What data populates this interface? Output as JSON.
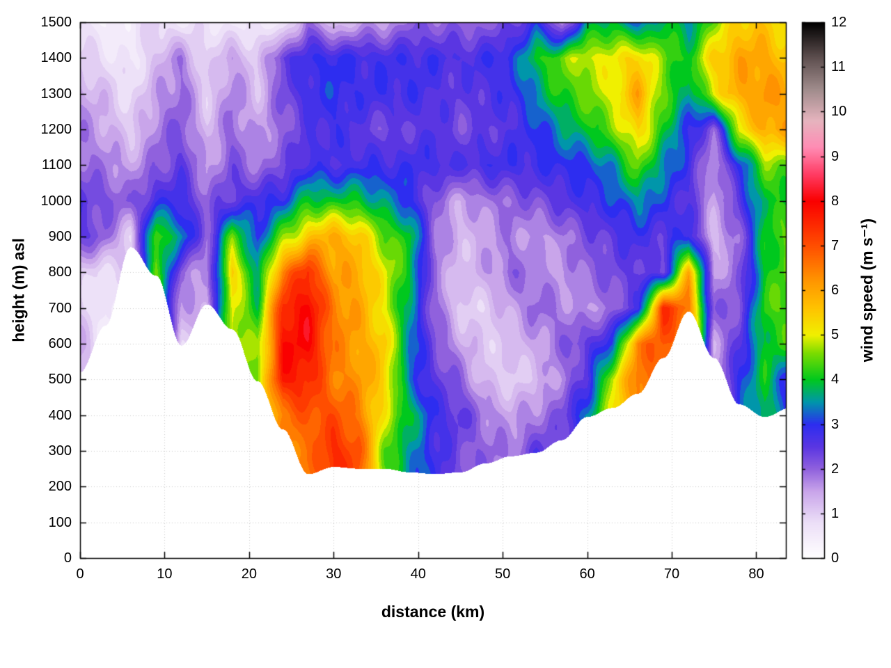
{
  "chart_data": {
    "type": "heatmap",
    "title": "",
    "xlabel": "distance (km)",
    "ylabel": "height (m) asl",
    "colorbar_label": "wind speed (m s⁻¹)",
    "xlim": [
      0,
      83.5
    ],
    "ylim": [
      0,
      1500
    ],
    "clim": [
      0,
      12
    ],
    "grid": true,
    "contour_step": 0.25,
    "x_ticks": [
      0,
      10,
      20,
      30,
      40,
      50,
      60,
      70,
      80
    ],
    "y_ticks": [
      0,
      100,
      200,
      300,
      400,
      500,
      600,
      700,
      800,
      900,
      1000,
      1100,
      1200,
      1300,
      1400,
      1500
    ],
    "cb_ticks": [
      0,
      1,
      2,
      3,
      4,
      5,
      6,
      7,
      8,
      9,
      10,
      11,
      12
    ],
    "x": [
      0,
      3,
      6,
      9,
      12,
      15,
      18,
      21,
      24,
      27,
      30,
      33,
      36,
      39,
      42,
      45,
      48,
      51,
      54,
      57,
      60,
      63,
      66,
      69,
      72,
      75,
      78,
      81,
      84
    ],
    "heights": [
      0,
      100,
      200,
      300,
      400,
      500,
      600,
      700,
      800,
      900,
      1000,
      1100,
      1200,
      1300,
      1400,
      1500
    ],
    "terrain_height": [
      520,
      650,
      870,
      790,
      595,
      710,
      640,
      495,
      360,
      235,
      255,
      250,
      250,
      240,
      235,
      240,
      265,
      285,
      295,
      330,
      395,
      420,
      460,
      560,
      690,
      560,
      430,
      395,
      420
    ],
    "wind_speed": [
      [
        null,
        null,
        null,
        null,
        null,
        null,
        null,
        null,
        null,
        null,
        null,
        null,
        null,
        null,
        null,
        null,
        null,
        null,
        null,
        null,
        null,
        null,
        null,
        null,
        null,
        null,
        null,
        null,
        null
      ],
      [
        null,
        null,
        null,
        null,
        null,
        null,
        null,
        null,
        null,
        null,
        null,
        null,
        null,
        null,
        null,
        null,
        null,
        null,
        null,
        null,
        null,
        null,
        null,
        null,
        null,
        null,
        null,
        null,
        null
      ],
      [
        null,
        null,
        null,
        null,
        null,
        null,
        null,
        null,
        null,
        null,
        null,
        null,
        null,
        null,
        null,
        null,
        null,
        null,
        null,
        null,
        null,
        null,
        null,
        null,
        null,
        null,
        null,
        null,
        null
      ],
      [
        null,
        null,
        null,
        null,
        null,
        null,
        null,
        null,
        null,
        6.5,
        7.5,
        7,
        4.5,
        3.5,
        2.8,
        2.2,
        2,
        1.8,
        2.5,
        null,
        null,
        null,
        null,
        null,
        null,
        null,
        null,
        null,
        null
      ],
      [
        null,
        null,
        null,
        null,
        null,
        null,
        null,
        null,
        6.5,
        7,
        7,
        6.5,
        5,
        4,
        2.8,
        2.5,
        1.8,
        1.5,
        1.8,
        2.2,
        3.5,
        null,
        null,
        null,
        null,
        null,
        null,
        4,
        null
      ],
      [
        null,
        null,
        null,
        null,
        null,
        null,
        null,
        4.5,
        7.8,
        7.5,
        6.5,
        6.2,
        5.5,
        3.2,
        2.5,
        2,
        1.2,
        1,
        1.2,
        1.8,
        2.5,
        5,
        6.5,
        null,
        null,
        null,
        3,
        4,
        2.8
      ],
      [
        1.5,
        null,
        null,
        null,
        1,
        null,
        null,
        4.5,
        7.8,
        8,
        6.5,
        6,
        5.5,
        3.5,
        2.2,
        1.5,
        1,
        1.2,
        1.5,
        2,
        2.5,
        3,
        6.5,
        7,
        null,
        1.5,
        2.5,
        4,
        4.2
      ],
      [
        1,
        0.5,
        null,
        null,
        1.5,
        null,
        5,
        4,
        7.5,
        8,
        6.5,
        6,
        5,
        3.5,
        2,
        1,
        1,
        1.5,
        2,
        1.8,
        1.5,
        2,
        2.5,
        7.5,
        6.5,
        2,
        2.2,
        4.2,
        4.5
      ],
      [
        1,
        0.8,
        null,
        4.5,
        2,
        1.5,
        5.5,
        3.5,
        6.5,
        7.5,
        6,
        6,
        5,
        4,
        1.8,
        1.2,
        1.5,
        2,
        1.8,
        1.5,
        2,
        2.2,
        2.5,
        2.2,
        6,
        1.5,
        2,
        4,
        4.5
      ],
      [
        2.5,
        2,
        1,
        4.5,
        3.5,
        2,
        4.5,
        3,
        4.5,
        5.5,
        6,
        5.5,
        4.5,
        4,
        2,
        1.2,
        1.5,
        1.8,
        1.5,
        1.8,
        2.2,
        2.5,
        2.8,
        2.5,
        3,
        1.2,
        2,
        4,
        4.5
      ],
      [
        2.5,
        2.2,
        2,
        2.8,
        2.8,
        2,
        2.5,
        2.8,
        3,
        4,
        4,
        4,
        3.5,
        3,
        2,
        1.5,
        1.8,
        2,
        2.2,
        2.5,
        2.8,
        3,
        3.5,
        3,
        2.5,
        1.5,
        2.5,
        4,
        4
      ],
      [
        2,
        1.8,
        1.5,
        2,
        2.5,
        1.5,
        2.2,
        1.8,
        2.2,
        2.8,
        2.6,
        2.8,
        2.8,
        2.8,
        2.8,
        2.6,
        2.8,
        2.8,
        2.8,
        3,
        3,
        3.5,
        4.5,
        3.5,
        2.8,
        1.5,
        3,
        4.5,
        4.5
      ],
      [
        1.8,
        1.5,
        1,
        1.8,
        2.2,
        1.2,
        2,
        1.5,
        2,
        2.5,
        2.8,
        2.5,
        2.2,
        2.4,
        2.6,
        2.2,
        2.4,
        2.6,
        3,
        3.5,
        4,
        4.5,
        5.5,
        4,
        3,
        2,
        5,
        6,
        6
      ],
      [
        1.5,
        1.2,
        0.8,
        1.5,
        2,
        1,
        1.8,
        1.2,
        2.2,
        2.8,
        3,
        2.8,
        2.8,
        2.8,
        2.6,
        2.4,
        2.6,
        2.8,
        3.5,
        4.2,
        4.5,
        5,
        6,
        4.5,
        3.5,
        5,
        6,
        6.2,
        6
      ],
      [
        1,
        0.8,
        0.5,
        1.2,
        1.8,
        0.8,
        1.6,
        1,
        2.5,
        2.8,
        3,
        2.8,
        2.8,
        2.8,
        2.8,
        2.6,
        2.8,
        3,
        4,
        4.5,
        5,
        5,
        5.5,
        4.5,
        4,
        5.5,
        6,
        6,
        5.5
      ],
      [
        0.8,
        0.3,
        0.6,
        1,
        0.5,
        0.8,
        0.4,
        0.7,
        0.3,
        2,
        1,
        1.5,
        1.5,
        2,
        2,
        2,
        2,
        2.2,
        3,
        1.5,
        3.5,
        4,
        3,
        4,
        3.5,
        4.5,
        5.5,
        5.5,
        5
      ]
    ],
    "colormap": [
      {
        "v": 0,
        "c": "#ffffff"
      },
      {
        "v": 0.8,
        "c": "#ecdff7"
      },
      {
        "v": 1.5,
        "c": "#c9a5ea"
      },
      {
        "v": 2,
        "c": "#9061dd"
      },
      {
        "v": 2.5,
        "c": "#5a36e2"
      },
      {
        "v": 3,
        "c": "#2d2df0"
      },
      {
        "v": 3.5,
        "c": "#0096aa"
      },
      {
        "v": 4,
        "c": "#00c81e"
      },
      {
        "v": 4.6,
        "c": "#7ddc00"
      },
      {
        "v": 5,
        "c": "#f0f000"
      },
      {
        "v": 5.6,
        "c": "#ffc300"
      },
      {
        "v": 6.2,
        "c": "#ff9700"
      },
      {
        "v": 7,
        "c": "#ff4e00"
      },
      {
        "v": 8,
        "c": "#fa0000"
      },
      {
        "v": 8.6,
        "c": "#ff3c64"
      },
      {
        "v": 9.2,
        "c": "#ff8cb4"
      },
      {
        "v": 9.8,
        "c": "#e6b4be"
      },
      {
        "v": 10.5,
        "c": "#a08c8c"
      },
      {
        "v": 11.2,
        "c": "#5f5050"
      },
      {
        "v": 12,
        "c": "#000000"
      }
    ],
    "grid_color": "#c8c8c8",
    "frame_color": "#000000",
    "background": "#ffffff"
  }
}
